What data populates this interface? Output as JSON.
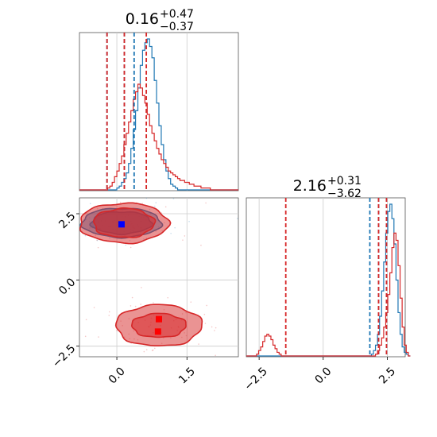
{
  "chart_data": [
    {
      "panel": "marginal-1",
      "type": "histogram",
      "title": {
        "value": "0.16",
        "plus": "+0.47",
        "minus": "−0.37"
      },
      "xlim": [
        -0.8,
        2.6
      ],
      "xticks": [
        0.0,
        1.5
      ],
      "grid": true,
      "series": [
        {
          "color": "#1f77b4",
          "bin_start": -0.8,
          "bin_width": 0.05,
          "counts": [
            0,
            0,
            0,
            0,
            0,
            0,
            0,
            0,
            0,
            0,
            0,
            0,
            0,
            0,
            0,
            0,
            1,
            2,
            4,
            6,
            9,
            14,
            22,
            32,
            42,
            54,
            66,
            74,
            78,
            80,
            76,
            70,
            58,
            46,
            34,
            24,
            16,
            10,
            6,
            3,
            2,
            1,
            0,
            0,
            0,
            0,
            0,
            0,
            0,
            0,
            0,
            0,
            0,
            0,
            0,
            0,
            0,
            0,
            0,
            0,
            0,
            0,
            0,
            0,
            0,
            0,
            0,
            0
          ],
          "quantiles": [
            -0.21,
            0.16,
            0.37
          ]
        },
        {
          "color": "#d62728",
          "bin_start": -0.8,
          "bin_width": 0.05,
          "counts": [
            0,
            0,
            0,
            0,
            0,
            0,
            0,
            0,
            0,
            0,
            0,
            0,
            1,
            2,
            4,
            7,
            10,
            14,
            18,
            24,
            30,
            36,
            42,
            48,
            52,
            56,
            54,
            50,
            46,
            40,
            34,
            30,
            26,
            22,
            19,
            16,
            14,
            12,
            10,
            9,
            8,
            7,
            6,
            5,
            5,
            4,
            4,
            3,
            3,
            2,
            2,
            2,
            1,
            1,
            1,
            1,
            0,
            0,
            0,
            0,
            0,
            0,
            0,
            0,
            0,
            0,
            0,
            0
          ],
          "quantiles": [
            -0.21,
            0.16,
            0.63
          ]
        }
      ]
    },
    {
      "panel": "joint-1-2",
      "type": "contour",
      "xlim": [
        -0.8,
        2.6
      ],
      "ylim": [
        -2.9,
        3.1
      ],
      "xticks": [
        0.0,
        1.5
      ],
      "xtick_labels": [
        "0.0",
        "1.5"
      ],
      "yticks": [
        2.5,
        0.0,
        -2.5
      ],
      "ytick_labels": [
        "2.5",
        "0.0",
        "−2.5"
      ],
      "grid": true,
      "series": [
        {
          "color": "#1f77b4",
          "modes": [
            {
              "x": 0.1,
              "y": 2.16,
              "rx1": 0.65,
              "ry1": 0.42,
              "rx2": 0.85,
              "ry2": 0.55
            }
          ],
          "best_fit": [
            {
              "x": 0.1,
              "y": 2.1
            }
          ]
        },
        {
          "color": "#d62728",
          "modes": [
            {
              "x": 0.15,
              "y": 2.15,
              "rx1": 0.65,
              "ry1": 0.55,
              "rx2": 0.95,
              "ry2": 0.75
            },
            {
              "x": 0.9,
              "y": -1.72,
              "rx1": 0.58,
              "ry1": 0.45,
              "rx2": 0.92,
              "ry2": 0.78
            }
          ],
          "best_fit": [
            {
              "x": 0.9,
              "y": -1.48
            },
            {
              "x": 0.88,
              "y": -1.95
            }
          ]
        }
      ]
    },
    {
      "panel": "marginal-2",
      "type": "histogram",
      "title": {
        "value": "2.16",
        "plus": "+0.31",
        "minus": "−3.62"
      },
      "xlim": [
        -3.0,
        3.2
      ],
      "xticks": [
        -2.5,
        0.0,
        2.5
      ],
      "xtick_labels": [
        "−2.5",
        "0.0",
        "2.5"
      ],
      "grid": true,
      "series": [
        {
          "color": "#1f77b4",
          "bin_start": -3.0,
          "bin_width": 0.08,
          "counts": [
            0,
            0,
            0,
            0,
            0,
            0,
            0,
            0,
            0,
            0,
            0,
            0,
            0,
            0,
            0,
            0,
            0,
            0,
            0,
            0,
            0,
            0,
            0,
            0,
            0,
            0,
            0,
            0,
            0,
            0,
            0,
            0,
            0,
            0,
            0,
            0,
            0,
            0,
            0,
            0,
            0,
            0,
            0,
            0,
            0,
            0,
            0,
            0,
            0,
            0,
            0,
            0,
            0,
            0,
            0,
            0,
            0,
            0,
            0,
            0,
            0,
            1,
            3,
            6,
            12,
            22,
            36,
            52,
            68,
            80,
            84,
            76,
            62,
            42,
            24,
            12,
            5,
            2,
            1,
            0
          ],
          "quantiles": [
            1.82,
            2.16,
            2.47
          ]
        },
        {
          "color": "#d62728",
          "bin_start": -3.0,
          "bin_width": 0.08,
          "counts": [
            0,
            0,
            0,
            0,
            0,
            1,
            3,
            5,
            8,
            11,
            12,
            11,
            9,
            6,
            4,
            2,
            1,
            0,
            0,
            0,
            0,
            0,
            0,
            0,
            0,
            0,
            0,
            0,
            0,
            0,
            0,
            0,
            0,
            0,
            0,
            0,
            0,
            0,
            0,
            0,
            0,
            0,
            0,
            0,
            0,
            0,
            0,
            0,
            0,
            0,
            0,
            0,
            0,
            0,
            0,
            0,
            0,
            0,
            0,
            0,
            0,
            0,
            0,
            1,
            3,
            6,
            10,
            16,
            24,
            34,
            46,
            60,
            68,
            64,
            50,
            32,
            16,
            6,
            2,
            0
          ],
          "quantiles": [
            -1.46,
            2.16,
            2.47
          ]
        }
      ]
    }
  ]
}
